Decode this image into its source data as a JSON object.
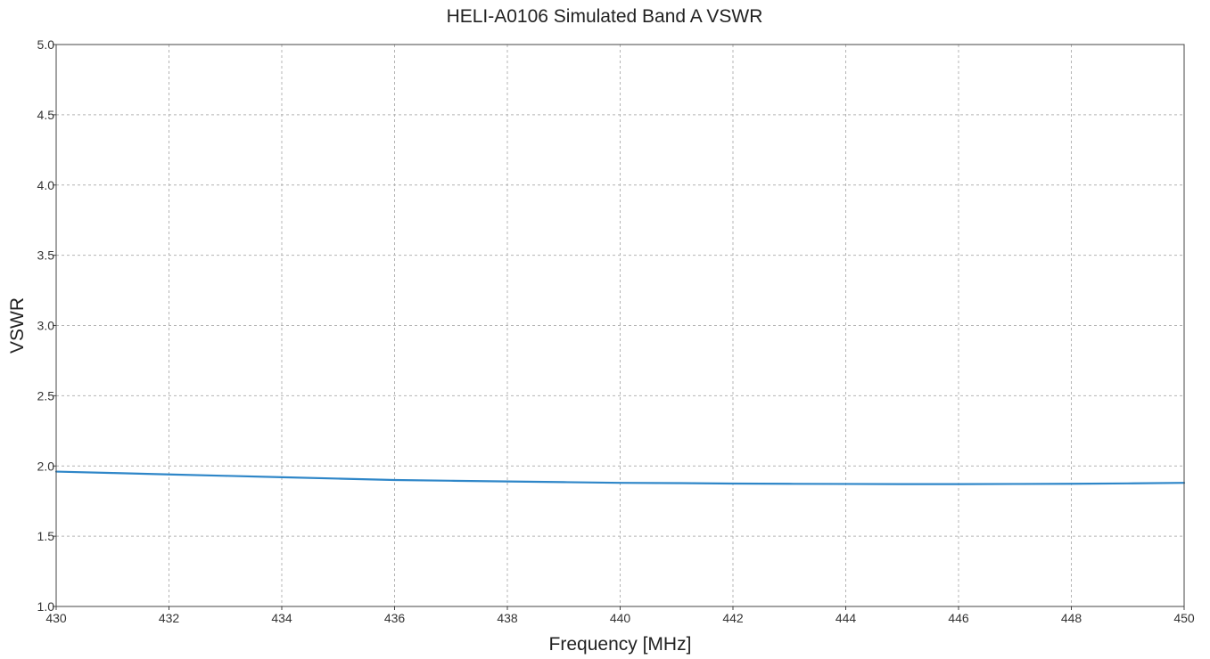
{
  "chart_data": {
    "type": "line",
    "title": "HELI-A0106 Simulated Band A VSWR",
    "xlabel": "Frequency [MHz]",
    "ylabel": "VSWR",
    "xlim": [
      430,
      450
    ],
    "ylim": [
      1.0,
      5.0
    ],
    "x_ticks": [
      "430",
      "432",
      "434",
      "436",
      "438",
      "440",
      "442",
      "444",
      "446",
      "448",
      "450"
    ],
    "y_ticks": [
      "1.0",
      "1.5",
      "2.0",
      "2.5",
      "3.0",
      "3.5",
      "4.0",
      "4.5",
      "5.0"
    ],
    "grid": true,
    "series": [
      {
        "color": "#2e86c8",
        "x": [
          430,
          431,
          432,
          433,
          434,
          435,
          436,
          437,
          438,
          439,
          440,
          441,
          442,
          443,
          444,
          445,
          446,
          447,
          448,
          449,
          450
        ],
        "y": [
          1.96,
          1.95,
          1.94,
          1.93,
          1.92,
          1.91,
          1.9,
          1.895,
          1.89,
          1.885,
          1.88,
          1.878,
          1.875,
          1.873,
          1.872,
          1.871,
          1.871,
          1.872,
          1.873,
          1.876,
          1.88
        ]
      }
    ]
  }
}
